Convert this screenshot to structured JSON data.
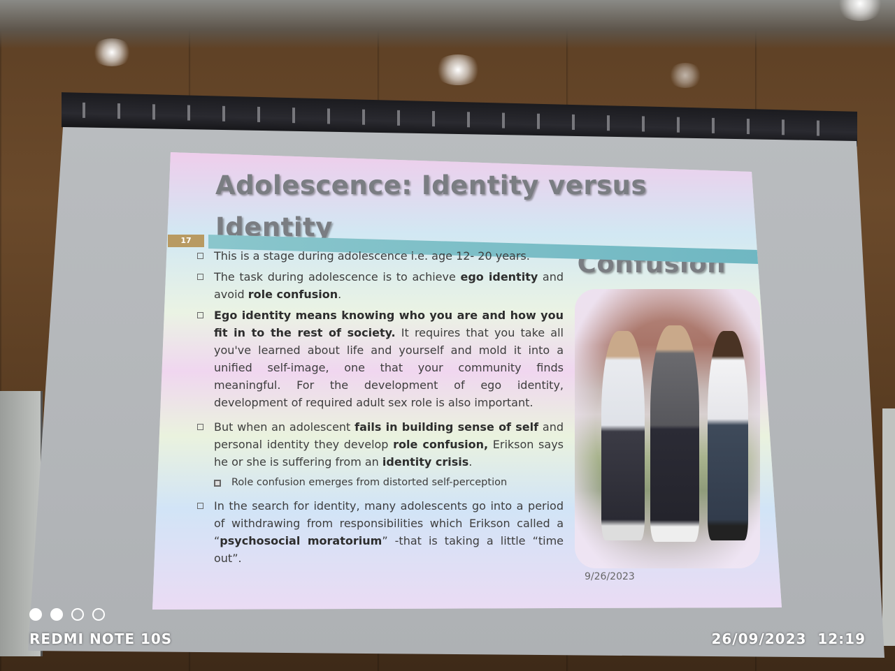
{
  "slide": {
    "title_line1": "Adolescence: Identity versus Identity",
    "title_line2": "Confusion",
    "slide_number": "17",
    "date": "9/26/2023",
    "bullets": [
      {
        "parts": [
          "This is a stage during adolescence i.e. age 12- 20 years."
        ]
      },
      {
        "parts": [
          "The task during adolescence is to achieve ",
          "ego identity",
          " and avoid ",
          "role confusion",
          "."
        ]
      },
      {
        "parts": [
          "Ego identity means knowing who you are and how you fit in to the rest of society.",
          " It requires that you take all you've learned about life and yourself and mold it into a unified self-image, one that your community finds meaningful. For the development of ego identity, development of required adult sex role is also important."
        ]
      },
      {
        "parts": [
          "But when an adolescent ",
          "fails in building sense of self",
          " and personal identity they develop ",
          "role confusion,",
          " Erikson says he or she is suffering from an ",
          "identity crisis",
          "."
        ]
      },
      {
        "parts": [
          "Role confusion emerges from distorted self-perception"
        ]
      },
      {
        "parts": [
          "In the search for identity, many adolescents go into a period of withdrawing from responsibilities which Erikson called a “",
          "psychosocial moratorium",
          "” -that is taking a little “time out”."
        ]
      }
    ]
  },
  "camera": {
    "device": "REDMI NOTE 10S",
    "timestamp": "26/09/2023  12:19",
    "dots": [
      true,
      true,
      false,
      false
    ]
  }
}
